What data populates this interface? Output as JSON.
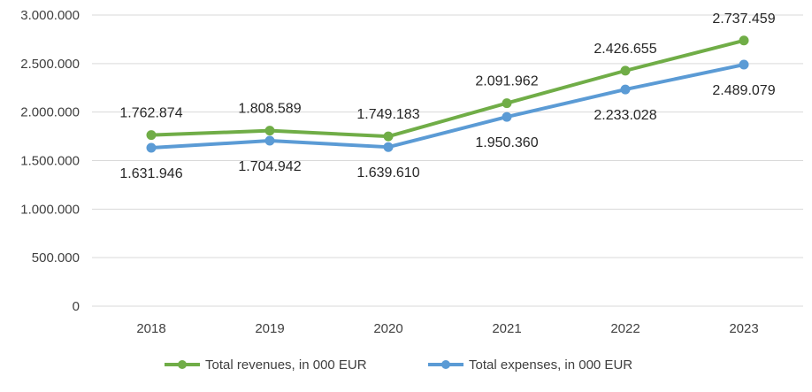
{
  "chart_data": {
    "type": "line",
    "title": "",
    "xlabel": "",
    "ylabel": "",
    "categories": [
      "2018",
      "2019",
      "2020",
      "2021",
      "2022",
      "2023"
    ],
    "ylim": [
      0,
      3000000
    ],
    "yticks": [
      0,
      500000,
      1000000,
      1500000,
      2000000,
      2500000,
      3000000
    ],
    "ytick_labels": [
      "0",
      "500.000",
      "1.000.000",
      "1.500.000",
      "2.000.000",
      "2.500.000",
      "3.000.000"
    ],
    "grid": true,
    "legend_position": "bottom",
    "series": [
      {
        "name": "Total revenues, in 000 EUR",
        "color": "#70AD47",
        "values": [
          1762874,
          1808589,
          1749183,
          2091962,
          2426655,
          2737459
        ],
        "labels": [
          "1.762.874",
          "1.808.589",
          "1.749.183",
          "2.091.962",
          "2.426.655",
          "2.737.459"
        ],
        "label_position": "above"
      },
      {
        "name": "Total expenses, in 000 EUR",
        "color": "#5B9BD5",
        "values": [
          1631946,
          1704942,
          1639610,
          1950360,
          2233028,
          2489079
        ],
        "labels": [
          "1.631.946",
          "1.704.942",
          "1.639.610",
          "1.950.360",
          "2.233.028",
          "2.489.079"
        ],
        "label_position": "below"
      }
    ]
  }
}
